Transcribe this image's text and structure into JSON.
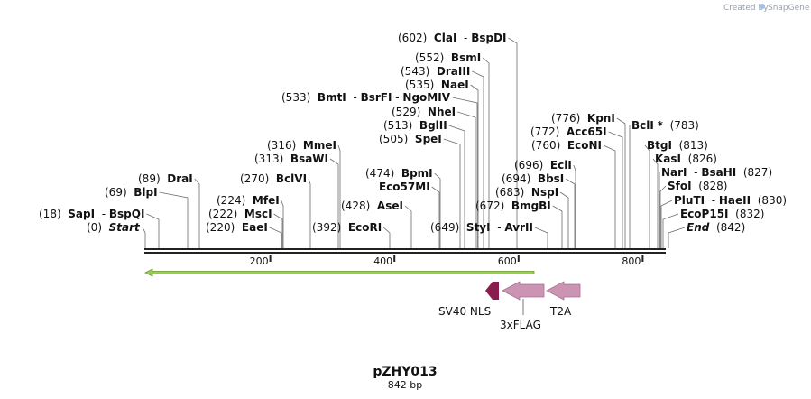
{
  "credit": {
    "text": "Created by",
    "brand": "SnapGene"
  },
  "plasmid": {
    "name": "pZHY013",
    "length_label": "842 bp",
    "length": 842
  },
  "ruler": {
    "ticks": [
      {
        "value": 200,
        "label": "200"
      },
      {
        "value": 400,
        "label": "400"
      },
      {
        "value": 600,
        "label": "600"
      },
      {
        "value": 800,
        "label": "800"
      }
    ]
  },
  "sites": [
    {
      "label": "SapI",
      "extra": "BspQI",
      "pos": "(18)",
      "bp": 18
    },
    {
      "label": "Start",
      "pos": "(0)",
      "bp": 0,
      "italic": true
    },
    {
      "label": "BlpI",
      "pos": "(69)",
      "bp": 69
    },
    {
      "label": "DraI",
      "pos": "(89)",
      "bp": 89
    },
    {
      "label": "EaeI",
      "pos": "(220)",
      "bp": 220
    },
    {
      "label": "MscI",
      "pos": "(222)",
      "bp": 222
    },
    {
      "label": "MfeI",
      "pos": "(224)",
      "bp": 224
    },
    {
      "label": "BclVI",
      "pos": "(270)",
      "bp": 270
    },
    {
      "label": "BsaWI",
      "pos": "(313)",
      "bp": 313
    },
    {
      "label": "MmeI",
      "pos": "(316)",
      "bp": 316
    },
    {
      "label": "EcoRI",
      "pos": "(392)",
      "bp": 392
    },
    {
      "label": "AseI",
      "pos": "(428)",
      "bp": 428
    },
    {
      "label": "Eco57MI",
      "bp": 474
    },
    {
      "label": "BpmI",
      "pos": "(474)",
      "bp": 474
    },
    {
      "label": "SpeI",
      "pos": "(505)",
      "bp": 505
    },
    {
      "label": "BglII",
      "pos": "(513)",
      "bp": 513
    },
    {
      "label": "NheI",
      "pos": "(529)",
      "bp": 529
    },
    {
      "label": "BmtI",
      "extra": "BsrFI",
      "extra2": "NgoMIV",
      "pos": "(533)",
      "bp": 533
    },
    {
      "label": "NaeI",
      "pos": "(535)",
      "bp": 535
    },
    {
      "label": "DraIII",
      "pos": "(543)",
      "bp": 543
    },
    {
      "label": "BsmI",
      "pos": "(552)",
      "bp": 552
    },
    {
      "label": "ClaI",
      "extra": "BspDI",
      "pos": "(602)",
      "bp": 602
    },
    {
      "label": "StyI",
      "extra": "AvrII",
      "pos": "(649)",
      "bp": 649
    },
    {
      "label": "BmgBI",
      "pos": "(672)",
      "bp": 672
    },
    {
      "label": "NspI",
      "pos": "(683)",
      "bp": 683
    },
    {
      "label": "BbsI",
      "pos": "(694)",
      "bp": 694
    },
    {
      "label": "EciI",
      "pos": "(696)",
      "bp": 696
    },
    {
      "label": "EcoNI",
      "pos": "(760)",
      "bp": 760
    },
    {
      "label": "Acc65I",
      "pos": "(772)",
      "bp": 772
    },
    {
      "label": "KpnI",
      "pos": "(776)",
      "bp": 776
    },
    {
      "label": "BclI",
      "star": "*",
      "pos": "(783)",
      "bp": 783
    },
    {
      "label": "BtgI",
      "pos": "(813)",
      "bp": 813
    },
    {
      "label": "KasI",
      "pos": "(826)",
      "bp": 826
    },
    {
      "label": "NarI",
      "extra": "BsaHI",
      "pos": "(827)",
      "bp": 827
    },
    {
      "label": "SfoI",
      "pos": "(828)",
      "bp": 828
    },
    {
      "label": "PluTI",
      "extra": "HaeII",
      "pos": "(830)",
      "bp": 830
    },
    {
      "label": "EcoP15I",
      "pos": "(832)",
      "bp": 832
    },
    {
      "label": "End",
      "pos": "(842)",
      "bp": 842,
      "italic": true
    }
  ],
  "features": [
    {
      "label": "SV40 NLS",
      "color": "#8b1d4e"
    },
    {
      "label": "3xFLAG",
      "color": "#cc94b3"
    },
    {
      "label": "T2A",
      "color": "#cc94b3"
    }
  ],
  "colors": {
    "orf": "#99cc55",
    "backbone": "#222222"
  }
}
